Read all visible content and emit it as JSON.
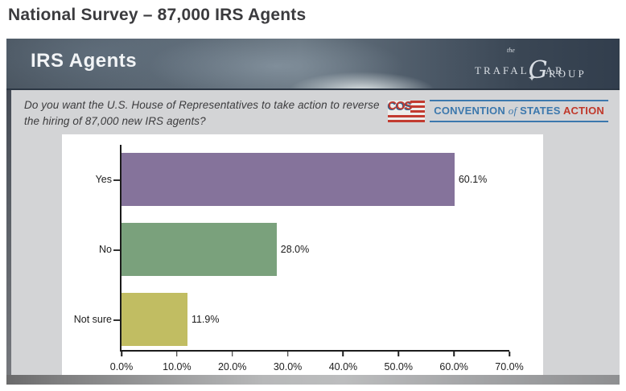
{
  "page": {
    "title": "National Survey – 87,000 IRS Agents"
  },
  "slide": {
    "header": {
      "title": "IRS Agents"
    },
    "trafalgar_logo": {
      "the": "the",
      "part1": "TRAFAL",
      "g": "G",
      "part2": "AR",
      "part3": "ROUP",
      "compass_icon": "✦"
    },
    "question": "Do you want the U.S. House of Representatives to take action to reverse the hiring of 87,000 new IRS agents?",
    "cos_logo": {
      "acronym": "COS",
      "wordmark": {
        "convention": "CONVENTION ",
        "of": "of",
        "states": " STATES ",
        "action": "ACTION"
      },
      "colors": {
        "red": "#c23b30",
        "blue": "#3c78ad"
      }
    }
  },
  "chart_data": {
    "type": "bar",
    "orientation": "horizontal",
    "title": "",
    "categories": [
      "Yes",
      "No",
      "Not sure"
    ],
    "values": [
      60.1,
      28.0,
      11.9
    ],
    "value_labels": [
      "60.1%",
      "28.0%",
      "11.9%"
    ],
    "bar_colors": [
      "#85739b",
      "#7aa17c",
      "#c1bd62"
    ],
    "x_axis": {
      "min": 0,
      "max": 70,
      "tick_step": 10,
      "tick_labels": [
        "0.0%",
        "10.0%",
        "20.0%",
        "30.0%",
        "40.0%",
        "50.0%",
        "60.0%",
        "70.0%"
      ]
    },
    "grid": false,
    "legend": false
  }
}
